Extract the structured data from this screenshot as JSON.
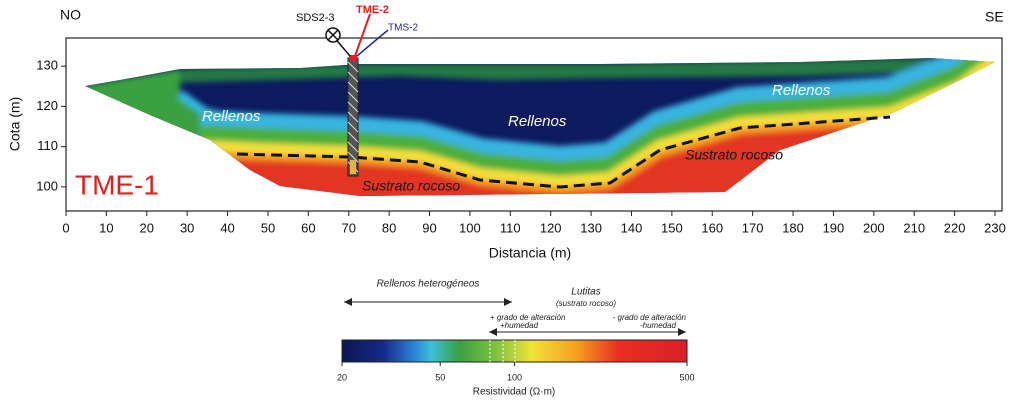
{
  "chart_data": {
    "type": "section",
    "xlabel": "Distancia (m)",
    "ylabel": "Cota (m)",
    "xlim": [
      0,
      230
    ],
    "xticks": [
      0,
      10,
      20,
      30,
      40,
      50,
      60,
      70,
      80,
      90,
      100,
      110,
      120,
      130,
      140,
      150,
      160,
      170,
      180,
      190,
      200,
      210,
      220,
      230
    ],
    "ylim": [
      94,
      137
    ],
    "yticks": [
      100,
      110,
      120,
      130
    ],
    "profile_name": "TME-1",
    "orientation": [
      "NO",
      "SE"
    ],
    "boreholes": [
      "SDS2-3",
      "TME-2",
      "TMS-2"
    ],
    "zone_labels": [
      "Rellenos",
      "Rellenos",
      "Rellenos",
      "Sustrato rocoso",
      "Sustrato rocoso"
    ],
    "legend": {
      "fill_label": "Rellenos heterogéneos",
      "rock_label": "Lutitas",
      "rock_sublabel": "(sustrato rocoso)",
      "more_alteration": "+ grado de alteración",
      "more_humidity": "+humedad",
      "less_alteration": "- grado de alteración",
      "less_humidity": "-humedad"
    },
    "colorbar": {
      "label": "Resistividad (Ω·m)",
      "scale": "log",
      "lim": [
        20,
        500
      ],
      "ticks": [
        20,
        50,
        100,
        500
      ]
    }
  }
}
